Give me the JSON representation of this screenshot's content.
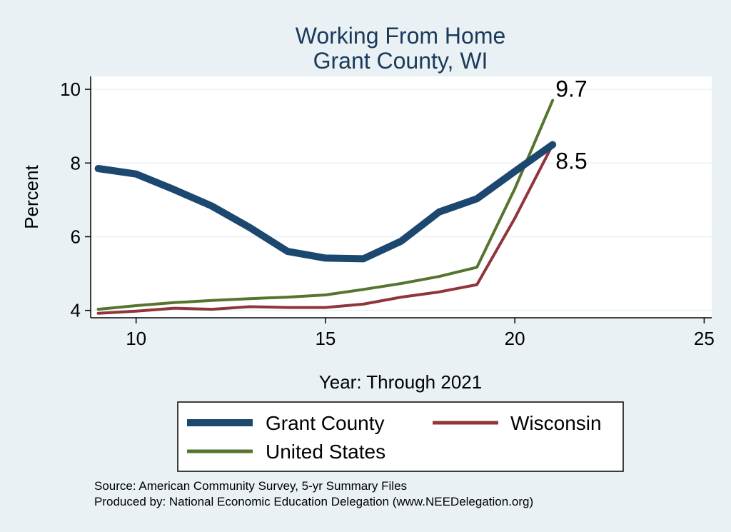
{
  "chart_data": {
    "type": "line",
    "title": [
      "Working From Home",
      "Grant County, WI"
    ],
    "xlabel": "Year: Through 2021",
    "ylabel": "Percent",
    "xlim": [
      8.8,
      25.2
    ],
    "ylim": [
      3.8,
      10.35
    ],
    "xticks": [
      10,
      15,
      20,
      25
    ],
    "yticks": [
      4,
      6,
      8,
      10
    ],
    "grid": true,
    "x": [
      9,
      10,
      11,
      12,
      13,
      14,
      15,
      16,
      17,
      18,
      19,
      20,
      21
    ],
    "series": [
      {
        "name": "Grant County",
        "color": "#1c4870",
        "values": [
          7.85,
          7.7,
          7.28,
          6.83,
          6.25,
          5.6,
          5.42,
          5.4,
          5.88,
          6.67,
          7.03,
          7.77,
          8.5
        ]
      },
      {
        "name": "Wisconsin",
        "color": "#90353b",
        "values": [
          3.92,
          3.98,
          4.06,
          4.03,
          4.1,
          4.08,
          4.08,
          4.17,
          4.36,
          4.5,
          4.7,
          6.5,
          8.5
        ]
      },
      {
        "name": "United States",
        "color": "#55752f",
        "values": [
          4.03,
          4.13,
          4.21,
          4.27,
          4.32,
          4.36,
          4.42,
          4.57,
          4.73,
          4.92,
          5.17,
          7.3,
          9.7
        ]
      }
    ],
    "end_labels": [
      "9.7",
      "8.5"
    ],
    "legend": [
      "Grant County",
      "Wisconsin",
      "United States"
    ]
  },
  "source_lines": [
    "Source: American Community Survey, 5-yr Summary Files",
    "Produced by: National Economic Education Delegation (www.NEEDelegation.org)"
  ]
}
